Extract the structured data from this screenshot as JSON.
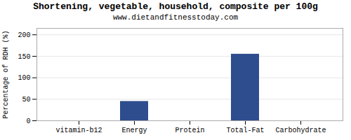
{
  "chart_data": {
    "type": "bar",
    "title": "Shortening, vegetable, household, composite per 100g",
    "subtitle": "www.dietandfitnesstoday.com",
    "categories": [
      "vitamin-b12",
      "Energy",
      "Protein",
      "Total-Fat",
      "Carbohydrate"
    ],
    "values": [
      0,
      45,
      0,
      155,
      0
    ],
    "color": "#2e4d8e",
    "ylabel": "Percentage of RDH (%)",
    "ylim": [
      0,
      215
    ],
    "yticks": [
      0,
      50,
      100,
      150,
      200
    ],
    "grid": true
  }
}
